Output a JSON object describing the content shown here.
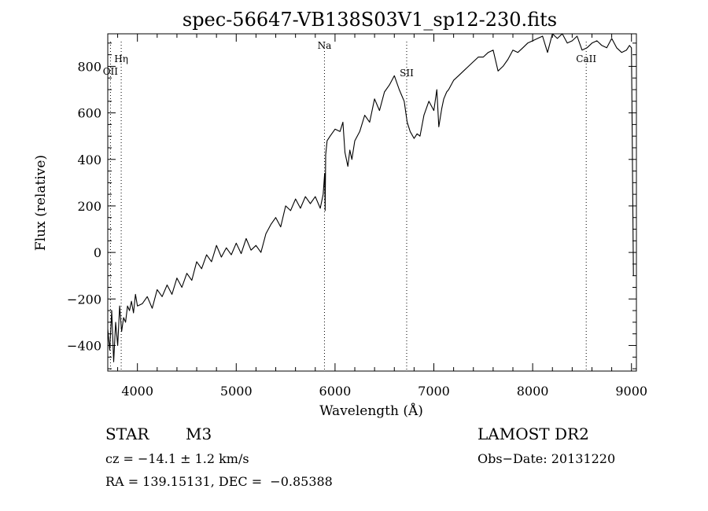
{
  "chart_data": {
    "type": "line",
    "title": "spec-56647-VB138S03V1_sp12-230.fits",
    "xlabel": "Wavelength (Å)",
    "ylabel": "Flux (relative)",
    "xlim": [
      3700,
      9050
    ],
    "ylim": [
      -510,
      940
    ],
    "xticks": [
      4000,
      5000,
      6000,
      7000,
      8000,
      9000
    ],
    "yticks": [
      -400,
      -200,
      0,
      200,
      400,
      600,
      800
    ],
    "grid": false,
    "line_color": "#000000",
    "series": [
      {
        "x": [
          3700,
          3720,
          3740,
          3760,
          3780,
          3800,
          3820,
          3840,
          3860,
          3880,
          3900,
          3920,
          3940,
          3960,
          3980,
          4000,
          4050,
          4100,
          4150,
          4200,
          4250,
          4300,
          4350,
          4400,
          4450,
          4500,
          4550,
          4600,
          4650,
          4700,
          4750,
          4800,
          4850,
          4900,
          4950,
          5000,
          5050,
          5100,
          5150,
          5200,
          5250,
          5300,
          5350,
          5400,
          5450,
          5500,
          5550,
          5600,
          5650,
          5700,
          5750,
          5800,
          5850,
          5880,
          5895,
          5900,
          5905,
          5920,
          5950,
          6000,
          6050,
          6080,
          6100,
          6130,
          6150,
          6170,
          6200,
          6250,
          6300,
          6350,
          6400,
          6450,
          6500,
          6550,
          6600,
          6650,
          6700,
          6730,
          6760,
          6800,
          6830,
          6860,
          6900,
          6950,
          7000,
          7030,
          7050,
          7080,
          7100,
          7130,
          7150,
          7200,
          7250,
          7300,
          7350,
          7400,
          7450,
          7500,
          7550,
          7600,
          7650,
          7700,
          7750,
          7800,
          7850,
          7900,
          7950,
          8000,
          8050,
          8100,
          8150,
          8200,
          8250,
          8300,
          8350,
          8400,
          8450,
          8500,
          8550,
          8600,
          8650,
          8700,
          8750,
          8800,
          8850,
          8900,
          8950,
          8980,
          9000,
          9020
        ],
        "y": [
          -330,
          -420,
          -250,
          -470,
          -300,
          -400,
          -230,
          -340,
          -280,
          -300,
          -230,
          -250,
          -210,
          -260,
          -180,
          -230,
          -220,
          -190,
          -240,
          -160,
          -190,
          -140,
          -180,
          -110,
          -150,
          -90,
          -120,
          -40,
          -70,
          -10,
          -40,
          30,
          -20,
          20,
          -10,
          40,
          -5,
          60,
          10,
          30,
          0,
          80,
          120,
          150,
          110,
          200,
          180,
          230,
          190,
          240,
          210,
          240,
          190,
          250,
          340,
          180,
          420,
          480,
          500,
          530,
          520,
          560,
          430,
          370,
          440,
          400,
          480,
          520,
          590,
          560,
          660,
          610,
          690,
          720,
          760,
          700,
          650,
          560,
          520,
          490,
          510,
          500,
          590,
          650,
          610,
          700,
          540,
          620,
          660,
          690,
          700,
          740,
          760,
          780,
          800,
          820,
          840,
          840,
          860,
          870,
          780,
          800,
          830,
          870,
          860,
          880,
          900,
          910,
          920,
          930,
          860,
          950,
          920,
          940,
          900,
          910,
          930,
          870,
          880,
          900,
          910,
          890,
          880,
          920,
          880,
          860,
          870,
          890,
          880,
          -100
        ],
        "values_approximate": true
      }
    ],
    "annotations": [
      {
        "label": "Hη",
        "x": 3836
      },
      {
        "label": "OII",
        "x": 3727
      },
      {
        "label": "Na",
        "x": 5893
      },
      {
        "label": "SII",
        "x": 6725
      },
      {
        "label": "CaII",
        "x": 8542
      }
    ]
  },
  "info": {
    "object_type": "STAR",
    "subclass": "M3",
    "survey": "LAMOST DR2",
    "cz": "cz = −14.1 ± 1.2 km/s",
    "obs_date": "Obs−Date: 20131220",
    "coords": "RA = 139.15131, DEC =  −0.85388"
  }
}
